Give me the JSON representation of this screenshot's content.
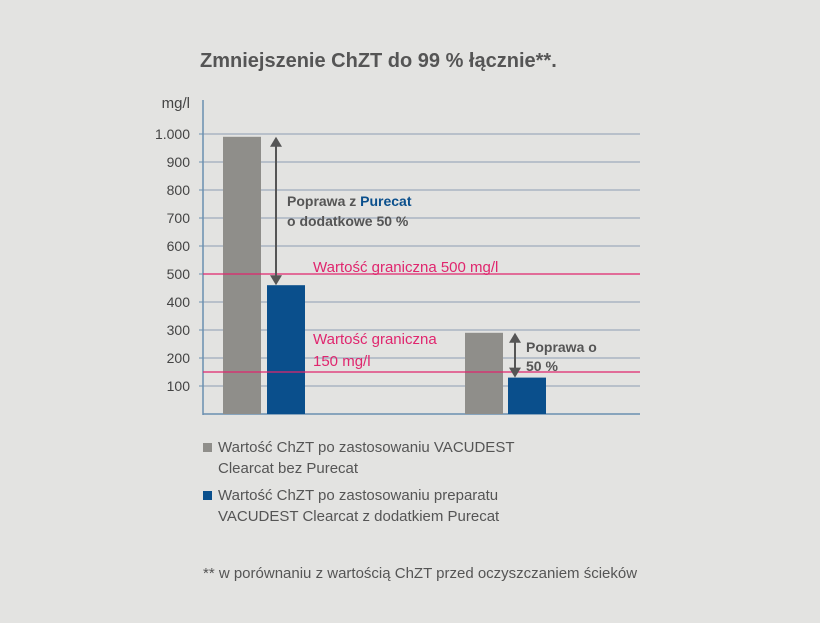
{
  "chart_data": {
    "type": "bar",
    "title": "Zmniejszenie ChZT do 99 % łącznie**.",
    "ylabel": "mg/l",
    "ylim": [
      0,
      1000
    ],
    "yticks": [
      {
        "value": 100,
        "label": "100"
      },
      {
        "value": 200,
        "label": "200"
      },
      {
        "value": 300,
        "label": "300"
      },
      {
        "value": 400,
        "label": "400"
      },
      {
        "value": 500,
        "label": "500"
      },
      {
        "value": 600,
        "label": "600"
      },
      {
        "value": 700,
        "label": "700"
      },
      {
        "value": 800,
        "label": "800"
      },
      {
        "value": 900,
        "label": "900"
      },
      {
        "value": 1000,
        "label": "1.000"
      }
    ],
    "grid": true,
    "legend_position": "bottom",
    "categories": [
      "",
      ""
    ],
    "series": [
      {
        "name": "Wartość ChZT po zastosowaniu VACUDEST Clearcat bez Purecat",
        "color": "#8f8e8a",
        "values": [
          990,
          290
        ]
      },
      {
        "name": "Wartość ChZT po zastosowaniu preparatu VACUDEST Clearcat z dodatkiem Purecat",
        "color": "#0a4f8c",
        "values": [
          460,
          130
        ]
      }
    ],
    "limits": [
      {
        "value": 500,
        "label": "Wartość graniczna 500 mg/l",
        "color": "#e0266e"
      },
      {
        "value": 150,
        "label_line1": "Wartość graniczna",
        "label_line2": "150 mg/l",
        "color": "#e0266e"
      }
    ],
    "annotations": {
      "first": {
        "prefix": "Poprawa z ",
        "highlight": "Purecat",
        "line2": "o dodatkowe 50 %"
      },
      "second": {
        "line1": "Poprawa o",
        "line2": "50 %"
      }
    },
    "footnote": "** w porównaniu z wartością ChZT przed oczyszczaniem ścieków"
  }
}
